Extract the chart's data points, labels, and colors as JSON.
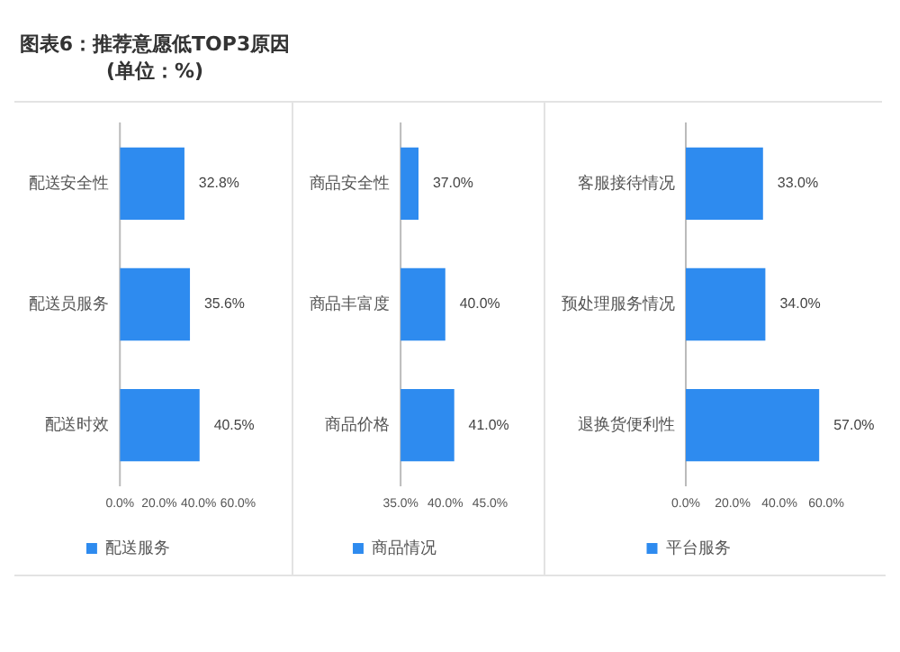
{
  "chart_data": [
    {
      "type": "bar",
      "title": "图表6：推荐意愿低TOP3原因(单位：%)",
      "orientation": "horizontal",
      "categories": [
        "配送安全性",
        "配送员服务",
        "配送时效"
      ],
      "series": [
        {
          "name": "配送服务",
          "color": "#2e8bef",
          "values": [
            32.8,
            35.6,
            40.5
          ],
          "value_labels": [
            "32.8%",
            "35.6%",
            "40.5%"
          ]
        }
      ],
      "xlim": [
        0,
        60
      ],
      "xticks": [
        {
          "value": 0,
          "label": "0.0%"
        },
        {
          "value": 20,
          "label": "20.0%"
        },
        {
          "value": 40,
          "label": "40.0%"
        },
        {
          "value": 60,
          "label": "60.0%"
        }
      ],
      "grid": false,
      "legend": "bottom"
    },
    {
      "type": "bar",
      "orientation": "horizontal",
      "categories": [
        "商品安全性",
        "商品丰富度",
        "商品价格"
      ],
      "series": [
        {
          "name": "商品情况",
          "color": "#2e8bef",
          "values": [
            37.0,
            40.0,
            41.0
          ],
          "value_labels": [
            "37.0%",
            "40.0%",
            "41.0%"
          ]
        }
      ],
      "xlim": [
        35,
        45
      ],
      "xticks": [
        {
          "value": 35,
          "label": "35.0%"
        },
        {
          "value": 40,
          "label": "40.0%"
        },
        {
          "value": 45,
          "label": "45.0%"
        }
      ],
      "grid": false,
      "legend": "bottom"
    },
    {
      "type": "bar",
      "orientation": "horizontal",
      "categories": [
        "客服接待情况",
        "预处理服务情况",
        "退换货便利性"
      ],
      "series": [
        {
          "name": "平台服务",
          "color": "#2e8bef",
          "values": [
            33.0,
            34.0,
            57.0
          ],
          "value_labels": [
            "33.0%",
            "34.0%",
            "57.0%"
          ]
        }
      ],
      "xlim": [
        0,
        60
      ],
      "xticks": [
        {
          "value": 0,
          "label": "0.0%"
        },
        {
          "value": 20,
          "label": "20.0%"
        },
        {
          "value": 40,
          "label": "40.0%"
        },
        {
          "value": 60,
          "label": "60.0%"
        }
      ],
      "grid": false,
      "legend": "bottom"
    }
  ]
}
